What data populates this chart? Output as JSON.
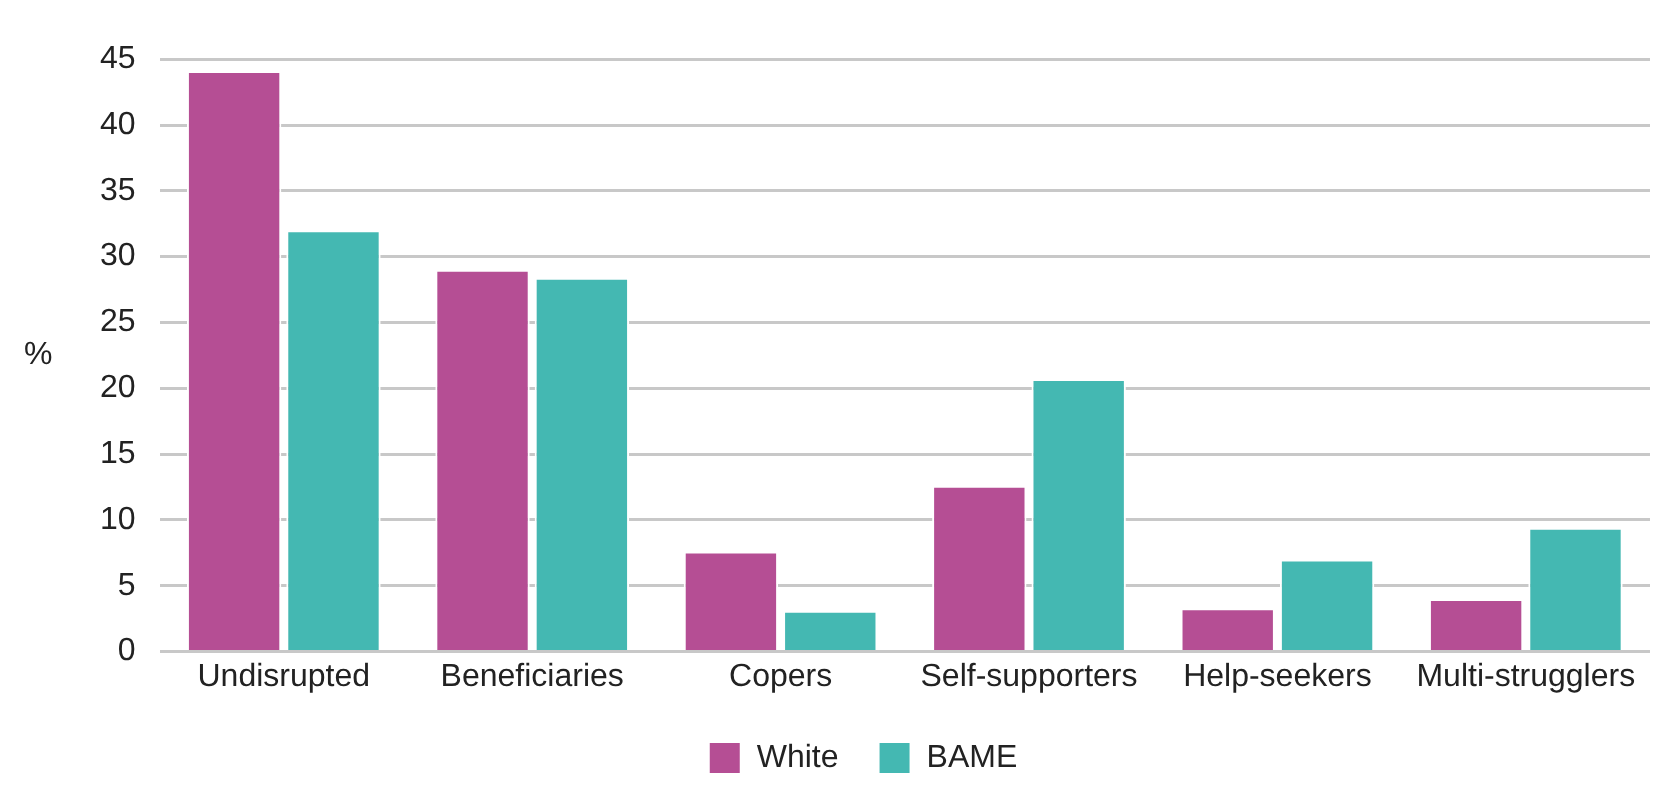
{
  "chart_data": {
    "type": "bar",
    "ylabel": "%",
    "categories": [
      "Undisrupted",
      "Beneficiaries",
      "Copers",
      "Self-supporters",
      "Help-seekers",
      "Multi-strugglers"
    ],
    "series": [
      {
        "name": "White",
        "color": "#b54e94",
        "values": [
          44.1,
          29.0,
          7.6,
          12.6,
          3.3,
          4.0
        ]
      },
      {
        "name": "BAME",
        "color": "#44b8b2",
        "values": [
          32.0,
          28.4,
          3.1,
          20.7,
          7.0,
          9.4
        ]
      }
    ],
    "ylim": [
      0,
      45
    ],
    "yticks": [
      0,
      5,
      10,
      15,
      20,
      25,
      30,
      35,
      40,
      45
    ],
    "grid": "y",
    "legend": "bottom"
  }
}
